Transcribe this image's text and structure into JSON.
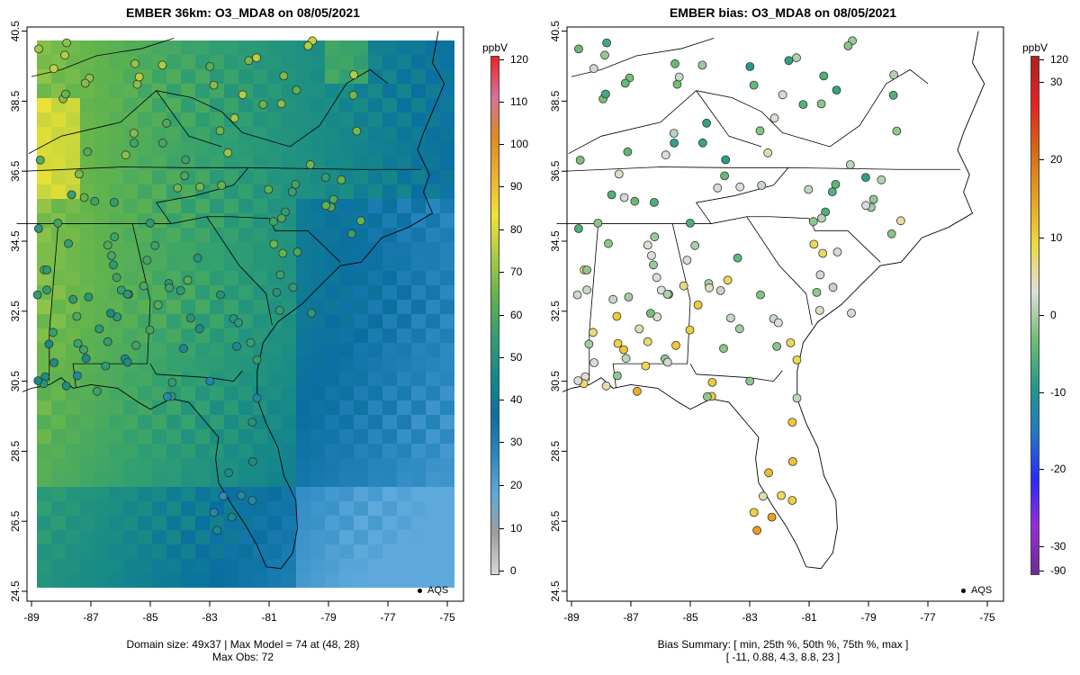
{
  "left_panel": {
    "title": "EMBER 36km: O3_MDA8 on 08/05/2021",
    "footer_line1": "Domain size: 49x37 | Max Model = 74 at (48, 28)",
    "footer_line2": "Max Obs: 72",
    "legend_label": "AQS",
    "colorbar_unit": "ppbV",
    "colorbar_ticks": [
      "0",
      "10",
      "20",
      "30",
      "40",
      "50",
      "60",
      "70",
      "80",
      "90",
      "100",
      "110",
      "120"
    ]
  },
  "right_panel": {
    "title": "EMBER bias: O3_MDA8 on 08/05/2021",
    "footer_line1": "Bias Summary: [ min, 25th %, 50th %, 75th %, max ]",
    "footer_line2": "[ -11,  0.88,  4.3,  8.8,  23 ]",
    "legend_label": "AQS",
    "colorbar_unit": "ppbV",
    "colorbar_ticks": [
      "-90",
      "-30",
      "-20",
      "-10",
      "0",
      "10",
      "20",
      "30",
      "120"
    ]
  },
  "axes": {
    "x_ticks": [
      "-89",
      "-87",
      "-85",
      "-83",
      "-81",
      "-79",
      "-77",
      "-75"
    ],
    "y_ticks": [
      "24.5",
      "26.5",
      "28.5",
      "30.5",
      "32.5",
      "34.5",
      "36.5",
      "38.5",
      "40.5"
    ]
  },
  "colors": {
    "model_scale": [
      "#d9d9d9",
      "#9e9e9e",
      "#5ea9dc",
      "#2a88c0",
      "#0a6fa0",
      "#178a88",
      "#32a070",
      "#62b44d",
      "#a8cc45",
      "#f0e332",
      "#efb02f",
      "#e08a1e",
      "#d86f9b",
      "#ee2222"
    ],
    "bias_scale": [
      "#6a2a9a",
      "#9a2ad8",
      "#2a2aff",
      "#1e78c8",
      "#229a8a",
      "#70c070",
      "#dddddd",
      "#f0d840",
      "#e8a020",
      "#d86a10",
      "#e82020",
      "#b02020"
    ]
  },
  "map_data": {
    "domain": "Southeastern United States",
    "lon_range": [
      -89,
      -75
    ],
    "lat_range": [
      24.5,
      40.5
    ],
    "grid_cells": "49x37",
    "station_network": "AQS"
  }
}
